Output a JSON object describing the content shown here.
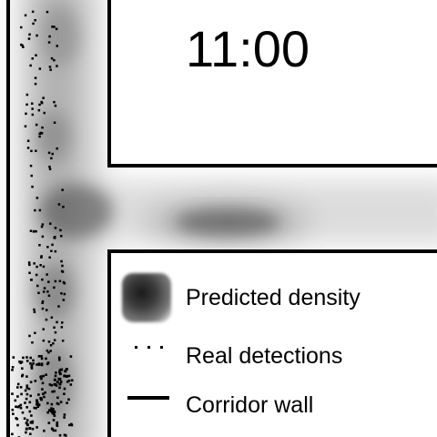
{
  "time": "11:00",
  "legend": {
    "predicted_density": "Predicted density",
    "real_detections": "Real detections",
    "corridor_wall": "Corridor wall"
  },
  "colors": {
    "background": "#ffffff",
    "wall": "#000000",
    "density": "#2b2b2b",
    "detections": "#000000"
  },
  "icons": [
    "density-swatch-icon",
    "detection-dots-icon",
    "wall-line-icon"
  ]
}
